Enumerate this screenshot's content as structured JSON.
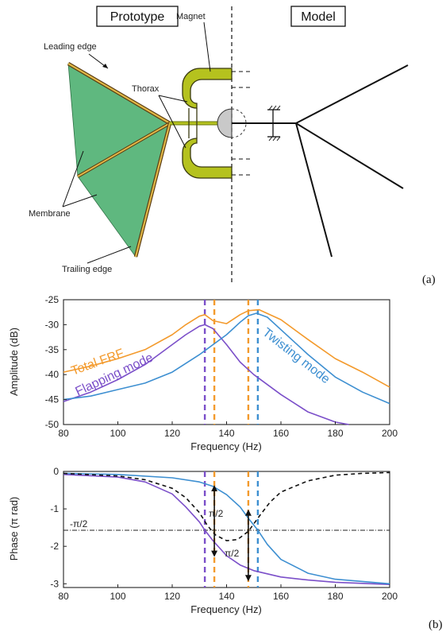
{
  "diagram": {
    "headers": {
      "prototype": "Prototype",
      "model": "Model"
    },
    "labels": {
      "leading_edge": "Leading edge",
      "magnet": "Magnet",
      "thorax": "Thorax",
      "membrane": "Membrane",
      "trailing_edge": "Trailing edge"
    },
    "panel_label": "(a)",
    "colors": {
      "membrane": "#5fb87f",
      "edge": "#c8a030",
      "thorax": "#b5c21e"
    }
  },
  "chart_data": [
    {
      "type": "line",
      "panel_label": "(b)",
      "xlabel": "Frequency (Hz)",
      "ylabel": "Amplitude (dB)",
      "xlim": [
        80,
        200
      ],
      "ylim": [
        -50,
        -25
      ],
      "xticks": [
        80,
        100,
        120,
        140,
        160,
        180,
        200
      ],
      "yticks": [
        -25,
        -30,
        -35,
        -40,
        -45,
        -50
      ],
      "vlines": [
        {
          "x": 132,
          "color": "#7b4fc9"
        },
        {
          "x": 135.5,
          "color": "#f39a2c"
        },
        {
          "x": 148,
          "color": "#f39a2c"
        },
        {
          "x": 151.5,
          "color": "#3d8fd1"
        }
      ],
      "series": [
        {
          "name": "Total FRF",
          "color": "#f39a2c",
          "x": [
            80,
            90,
            100,
            110,
            120,
            125,
            130,
            132,
            135,
            140,
            145,
            148,
            152,
            160,
            170,
            180,
            190,
            200
          ],
          "y": [
            -39.5,
            -38.3,
            -36.8,
            -35,
            -32,
            -30,
            -28.3,
            -28,
            -29.2,
            -29.8,
            -28,
            -27.2,
            -27,
            -29,
            -33,
            -36.8,
            -39.5,
            -42.5
          ]
        },
        {
          "name": "Flapping mode",
          "color": "#7b4fc9",
          "x": [
            80,
            90,
            100,
            110,
            120,
            125,
            130,
            132,
            135,
            140,
            145,
            150,
            160,
            170,
            180,
            185
          ],
          "y": [
            -45.4,
            -43.5,
            -41,
            -38,
            -34,
            -32,
            -30.3,
            -30,
            -30.8,
            -34,
            -37.5,
            -40,
            -44,
            -47.5,
            -49.5,
            -50
          ]
        },
        {
          "name": "Twisting mode",
          "color": "#3d8fd1",
          "x": [
            80,
            90,
            100,
            110,
            120,
            130,
            140,
            145,
            148,
            151,
            155,
            160,
            170,
            180,
            190,
            200
          ],
          "y": [
            -45,
            -44.3,
            -43,
            -41.7,
            -39.5,
            -36,
            -32,
            -29.5,
            -28.2,
            -27.7,
            -28.5,
            -31,
            -36,
            -40.5,
            -43.5,
            -45.8
          ]
        }
      ]
    },
    {
      "type": "line",
      "xlabel": "Frequency (Hz)",
      "ylabel": "Phase (π rad)",
      "xlim": [
        80,
        200
      ],
      "ylim": [
        -3.1,
        0
      ],
      "xticks": [
        80,
        100,
        120,
        140,
        160,
        180,
        200
      ],
      "yticks": [
        0,
        -1,
        -2,
        -3
      ],
      "hline": {
        "y": -1.57,
        "label": "-π/2"
      },
      "annotations": [
        "π/2",
        "π/2"
      ],
      "series": [
        {
          "color": "#7b4fc9",
          "style": "solid",
          "x": [
            80,
            100,
            110,
            120,
            125,
            130,
            132,
            135,
            140,
            145,
            150,
            160,
            170,
            180,
            200
          ],
          "y": [
            -0.08,
            -0.15,
            -0.28,
            -0.6,
            -0.95,
            -1.35,
            -1.57,
            -1.85,
            -2.25,
            -2.5,
            -2.65,
            -2.82,
            -2.9,
            -2.96,
            -3.02
          ]
        },
        {
          "color": "#3d8fd1",
          "style": "solid",
          "x": [
            80,
            100,
            120,
            130,
            135,
            140,
            145,
            148,
            151.5,
            155,
            160,
            170,
            180,
            200
          ],
          "y": [
            -0.05,
            -0.08,
            -0.17,
            -0.28,
            -0.4,
            -0.62,
            -0.95,
            -1.25,
            -1.57,
            -1.95,
            -2.35,
            -2.72,
            -2.88,
            -3.0
          ]
        },
        {
          "color": "#111111",
          "style": "dashed",
          "x": [
            80,
            100,
            110,
            120,
            125,
            130,
            133,
            136,
            140,
            144,
            148,
            152,
            156,
            160,
            170,
            180,
            190,
            200
          ],
          "y": [
            -0.05,
            -0.12,
            -0.22,
            -0.45,
            -0.7,
            -1.1,
            -1.45,
            -1.7,
            -1.85,
            -1.82,
            -1.6,
            -1.2,
            -0.82,
            -0.55,
            -0.25,
            -0.1,
            -0.05,
            -0.03
          ]
        }
      ]
    }
  ]
}
